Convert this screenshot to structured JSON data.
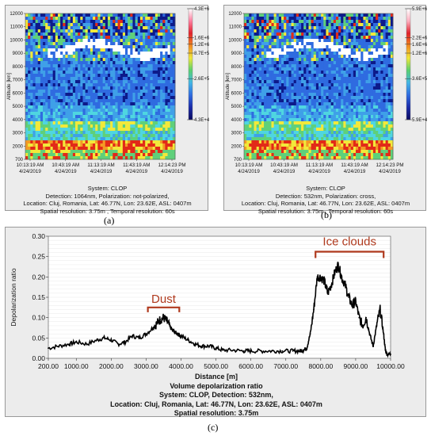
{
  "chart_data": [
    {
      "type": "heatmap",
      "panel_label": "(a)",
      "ylabel": "Altitude [km]",
      "y_ticks": [
        "12000",
        "11000",
        "10000",
        "9000",
        "8000",
        "7000",
        "6000",
        "5000",
        "4000",
        "3000",
        "2000",
        "700"
      ],
      "x_ticks": [
        {
          "time": "10:13:19 AM",
          "date": "4/24/2019"
        },
        {
          "time": "10:43:19 AM",
          "date": "4/24/2019"
        },
        {
          "time": "11:13:19 AM",
          "date": "4/24/2019"
        },
        {
          "time": "11:43:19 AM",
          "date": "4/24/2019"
        },
        {
          "time": "12:14:23 PM",
          "date": "4/24/2019"
        }
      ],
      "colorbar_labels": [
        "4.3E+6",
        "1.6E+6",
        "1.2E+6",
        "8.7E+5",
        "2.6E+5",
        "4.3E+4"
      ],
      "info": [
        "System: CLOP",
        "Detection: 1064nm, Polarization: not-polarized,",
        "Location: Cluj, Romania, Lat: 46.77N, Lon: 23.62E, ASL: 0407m",
        "Spatial resolution: 3.75m , Temporal resolution: 60s"
      ]
    },
    {
      "type": "heatmap",
      "panel_label": "(b)",
      "ylabel": "Altitude [km]",
      "y_ticks": [
        "12000",
        "11000",
        "10000",
        "9000",
        "8000",
        "7000",
        "6000",
        "5000",
        "4000",
        "3000",
        "2000",
        "700"
      ],
      "x_ticks": [
        {
          "time": "10:13:19 AM",
          "date": "4/24/2019"
        },
        {
          "time": "10:43:19 AM",
          "date": "4/24/2019"
        },
        {
          "time": "11:13:19 AM",
          "date": "4/24/2019"
        },
        {
          "time": "11:43:19 AM",
          "date": "4/24/2019"
        },
        {
          "time": "12:14:23 PM",
          "date": "4/24/2019"
        }
      ],
      "colorbar_labels": [
        "5.9E+6",
        "2.2E+6",
        "1.6E+6",
        "1.2E+6",
        "3.6E+5",
        "5.9E+4"
      ],
      "info": [
        "System: CLOP",
        "Detection: 532nm, Polarization: cross,",
        "Location: Cluj, Romania, Lat: 46.77N, Lon: 23.62E, ASL: 0407m",
        "Spatial resolution: 3.75m , Temporal resolution: 60s"
      ]
    },
    {
      "type": "line",
      "panel_label": "(c)",
      "xlabel": "Distance [m]",
      "ylabel": "Depolarization ratio",
      "xlim": [
        200,
        10000
      ],
      "ylim": [
        0,
        0.3
      ],
      "x_tick_labels": [
        "200.00",
        "1000.00",
        "2000.00",
        "3000.00",
        "4000.00",
        "5000.00",
        "6000.00",
        "7000.00",
        "8000.00",
        "9000.00",
        "10000.00"
      ],
      "y_tick_labels": [
        "0.00",
        "0.05",
        "0.10",
        "0.15",
        "0.20",
        "0.25",
        "0.30"
      ],
      "annotations": [
        "Dust",
        "Ice clouds"
      ],
      "info": [
        "Volume depolarization ratio",
        "System: CLOP, Detection: 532nm,",
        "Location: Cluj, Romania, Lat: 46.77N, Lon: 23.62E, ASL: 0407m",
        "Spatial resolution: 3.75m"
      ],
      "x": [
        200,
        500,
        800,
        1000,
        1300,
        1600,
        1800,
        2000,
        2200,
        2400,
        2600,
        2800,
        3000,
        3200,
        3300,
        3400,
        3500,
        3600,
        3700,
        3800,
        3900,
        4000,
        4200,
        4400,
        4600,
        4800,
        5000,
        5200,
        5500,
        5800,
        6000,
        6300,
        6600,
        6900,
        7200,
        7400,
        7500,
        7600,
        7700,
        7800,
        7900,
        8000,
        8100,
        8200,
        8300,
        8400,
        8500,
        8600,
        8700,
        8800,
        8900,
        9000,
        9100,
        9200,
        9300,
        9400,
        9500,
        9600,
        9700,
        9800,
        9850,
        9900,
        10000
      ],
      "y": [
        0.025,
        0.03,
        0.035,
        0.04,
        0.035,
        0.045,
        0.05,
        0.045,
        0.035,
        0.04,
        0.055,
        0.05,
        0.06,
        0.075,
        0.085,
        0.095,
        0.1,
        0.09,
        0.075,
        0.065,
        0.06,
        0.055,
        0.045,
        0.035,
        0.03,
        0.03,
        0.025,
        0.02,
        0.02,
        0.018,
        0.018,
        0.018,
        0.018,
        0.018,
        0.018,
        0.018,
        0.02,
        0.025,
        0.06,
        0.12,
        0.2,
        0.2,
        0.19,
        0.16,
        0.18,
        0.21,
        0.23,
        0.2,
        0.18,
        0.15,
        0.13,
        0.14,
        0.1,
        0.08,
        0.1,
        0.06,
        0.03,
        0.08,
        0.12,
        0.06,
        0.02,
        0.01,
        0.01
      ]
    }
  ]
}
